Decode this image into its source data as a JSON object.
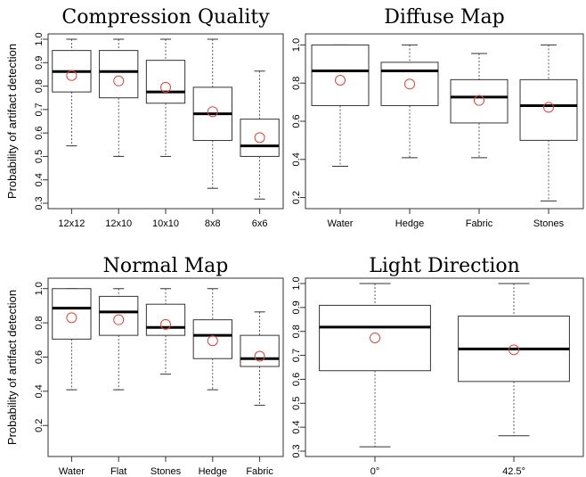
{
  "figure": {
    "ylabel": "Probability of artifact detection"
  },
  "chart_data": [
    {
      "type": "boxplot",
      "title": "Compression Quality",
      "ylabel": "Probability of artifact detection",
      "ylim": [
        0.3,
        1.0
      ],
      "yticks": [
        "0.3",
        "0.4",
        "0.5",
        "0.6",
        "0.7",
        "0.8",
        "0.9",
        "1.0"
      ],
      "categories": [
        "12x12",
        "12x10",
        "10x10",
        "8x8",
        "6x6"
      ],
      "boxes": [
        {
          "min": 0.545,
          "q1": 0.775,
          "median": 0.862,
          "q3": 0.952,
          "max": 1.0,
          "mean": 0.845
        },
        {
          "min": 0.5,
          "q1": 0.75,
          "median": 0.862,
          "q3": 0.952,
          "max": 1.0,
          "mean": 0.822
        },
        {
          "min": 0.5,
          "q1": 0.727,
          "median": 0.775,
          "q3": 0.91,
          "max": 1.0,
          "mean": 0.795
        },
        {
          "min": 0.364,
          "q1": 0.568,
          "median": 0.682,
          "q3": 0.795,
          "max": 1.0,
          "mean": 0.691
        },
        {
          "min": 0.318,
          "q1": 0.5,
          "median": 0.545,
          "q3": 0.659,
          "max": 0.864,
          "mean": 0.58
        }
      ],
      "median_color": "#000000",
      "mean_color": "#e8413a"
    },
    {
      "type": "boxplot",
      "title": "Diffuse Map",
      "ylim": [
        0.17,
        1.03
      ],
      "yticks": [
        "0.2",
        "0.4",
        "0.6",
        "0.8",
        "1.0"
      ],
      "categories": [
        "Water",
        "Hedge",
        "Fabric",
        "Stones"
      ],
      "boxes": [
        {
          "min": 0.364,
          "q1": 0.682,
          "median": 0.864,
          "q3": 1.0,
          "max": 1.0,
          "mean": 0.815
        },
        {
          "min": 0.409,
          "q1": 0.682,
          "median": 0.864,
          "q3": 0.909,
          "max": 1.0,
          "mean": 0.795
        },
        {
          "min": 0.409,
          "q1": 0.591,
          "median": 0.727,
          "q3": 0.818,
          "max": 0.955,
          "mean": 0.709
        },
        {
          "min": 0.182,
          "q1": 0.5,
          "median": 0.682,
          "q3": 0.818,
          "max": 1.0,
          "mean": 0.673
        }
      ],
      "median_color": "#000000",
      "mean_color": "#e8413a"
    },
    {
      "type": "boxplot",
      "title": "Normal Map",
      "ylabel": "Probability of artifact detection",
      "ylim": [
        0.05,
        1.03
      ],
      "yticks": [
        "0.2",
        "0.4",
        "0.6",
        "0.8",
        "1.0"
      ],
      "categories": [
        "Water",
        "Flat",
        "Stones",
        "Hedge",
        "Fabric"
      ],
      "boxes": [
        {
          "min": 0.409,
          "q1": 0.705,
          "median": 0.886,
          "q3": 1.0,
          "max": 1.0,
          "mean": 0.83
        },
        {
          "min": 0.409,
          "q1": 0.727,
          "median": 0.864,
          "q3": 0.955,
          "max": 1.0,
          "mean": 0.818
        },
        {
          "min": 0.5,
          "q1": 0.727,
          "median": 0.773,
          "q3": 0.909,
          "max": 1.0,
          "mean": 0.791
        },
        {
          "min": 0.409,
          "q1": 0.591,
          "median": 0.727,
          "q3": 0.818,
          "max": 1.0,
          "mean": 0.695
        },
        {
          "min": 0.318,
          "q1": 0.545,
          "median": 0.591,
          "q3": 0.727,
          "max": 0.864,
          "mean": 0.605
        }
      ],
      "median_color": "#000000",
      "mean_color": "#e8413a"
    },
    {
      "type": "boxplot",
      "title": "Light Direction",
      "ylim": [
        0.3,
        1.0
      ],
      "yticks": [
        "0.3",
        "0.4",
        "0.5",
        "0.6",
        "0.7",
        "0.8",
        "0.9",
        "1.0"
      ],
      "categories": [
        "0°",
        "42.5°"
      ],
      "boxes": [
        {
          "min": 0.318,
          "q1": 0.636,
          "median": 0.818,
          "q3": 0.909,
          "max": 1.0,
          "mean": 0.773
        },
        {
          "min": 0.364,
          "q1": 0.591,
          "median": 0.727,
          "q3": 0.864,
          "max": 1.0,
          "mean": 0.723
        }
      ],
      "median_color": "#000000",
      "mean_color": "#e8413a"
    }
  ]
}
